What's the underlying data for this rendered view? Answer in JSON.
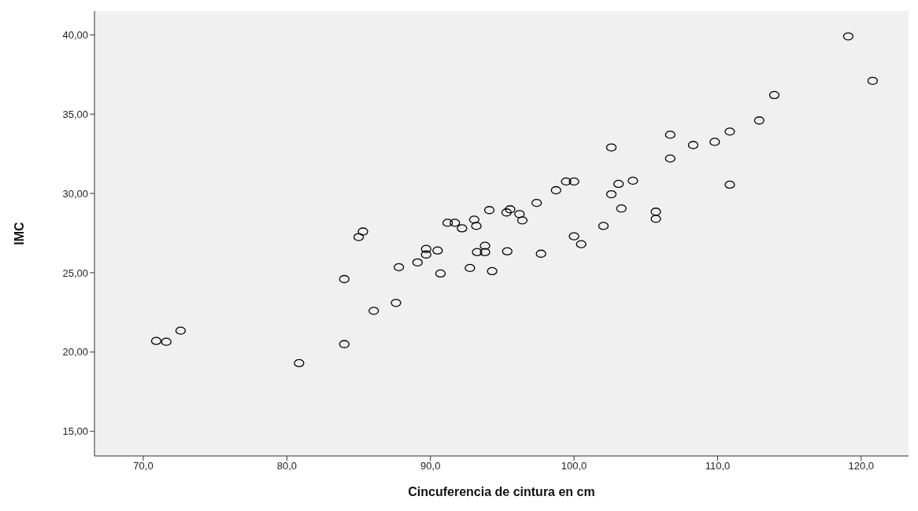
{
  "chart_data": {
    "type": "scatter",
    "xlabel": "Cincuferencia de cintura en cm",
    "ylabel": "IMC",
    "marker": "circle",
    "xlim": [
      66.6,
      123.3
    ],
    "ylim": [
      13.45,
      41.5
    ],
    "xticks": [
      {
        "value": 70,
        "label": "70,0"
      },
      {
        "value": 80,
        "label": "80,0"
      },
      {
        "value": 90,
        "label": "90,0"
      },
      {
        "value": 100,
        "label": "100,0"
      },
      {
        "value": 110,
        "label": "110,0"
      },
      {
        "value": 120,
        "label": "120,0"
      }
    ],
    "yticks": [
      {
        "value": 15,
        "label": "15,00"
      },
      {
        "value": 20,
        "label": "20,00"
      },
      {
        "value": 25,
        "label": "25,00"
      },
      {
        "value": 30,
        "label": "30,00"
      },
      {
        "value": 35,
        "label": "35,00"
      },
      {
        "value": 40,
        "label": "40,00"
      }
    ],
    "series": [
      {
        "color": "#000000",
        "x": [
          70.9,
          71.6,
          72.6,
          80.85,
          84.0,
          84.0,
          85.0,
          85.3,
          86.05,
          87.6,
          87.8,
          89.1,
          89.7,
          89.7,
          90.5,
          90.7,
          91.2,
          91.7,
          92.2,
          92.75,
          93.05,
          93.2,
          93.8,
          93.25,
          93.8,
          94.3,
          94.1,
          95.35,
          97.7,
          95.3,
          95.55,
          96.2,
          96.4,
          97.4,
          98.75,
          99.45,
          100.0,
          100.0,
          100.5,
          102.05,
          102.6,
          102.6,
          103.1,
          103.3,
          104.1,
          105.7,
          105.7,
          106.7,
          108.3,
          119.1,
          120.8,
          113.95,
          112.9,
          110.85,
          109.8,
          106.7,
          110.85
        ],
        "values": [
          20.7,
          20.65,
          21.35,
          19.3,
          20.5,
          24.6,
          27.25,
          27.6,
          22.6,
          23.1,
          25.35,
          25.65,
          26.5,
          26.15,
          26.4,
          24.95,
          28.15,
          28.15,
          27.8,
          25.3,
          28.35,
          27.95,
          26.7,
          26.3,
          26.3,
          25.1,
          28.95,
          26.35,
          26.2,
          28.8,
          29.0,
          28.7,
          28.3,
          29.4,
          30.2,
          30.75,
          30.75,
          27.3,
          26.8,
          27.95,
          29.95,
          32.9,
          30.6,
          29.05,
          30.8,
          28.85,
          28.4,
          32.2,
          33.05,
          39.9,
          37.1,
          36.2,
          34.6,
          33.9,
          33.25,
          33.7,
          30.55
        ]
      }
    ]
  }
}
